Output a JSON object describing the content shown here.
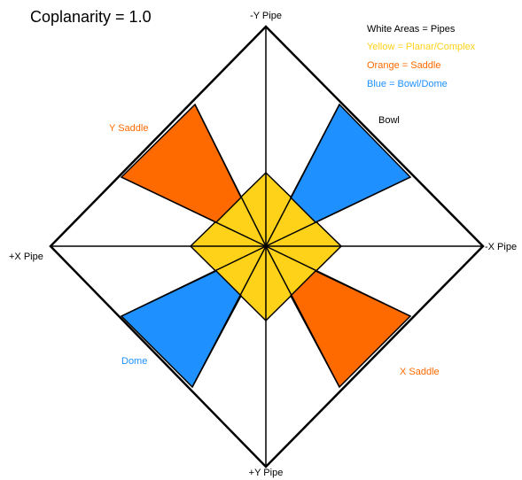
{
  "title": "Coplanarity = 1.0",
  "legend": [
    "White Areas = Pipes",
    "Yellow = Planar/Complex",
    "Orange = Saddle",
    "Blue = Bowl/Dome"
  ],
  "labels": {
    "top": "-Y Pipe",
    "bottom": "+Y Pipe",
    "left": "+X Pipe",
    "right": "-X Pipe",
    "y_saddle": "Y Saddle",
    "bowl": "Bowl",
    "dome": "Dome",
    "x_saddle": "X Saddle"
  }
}
